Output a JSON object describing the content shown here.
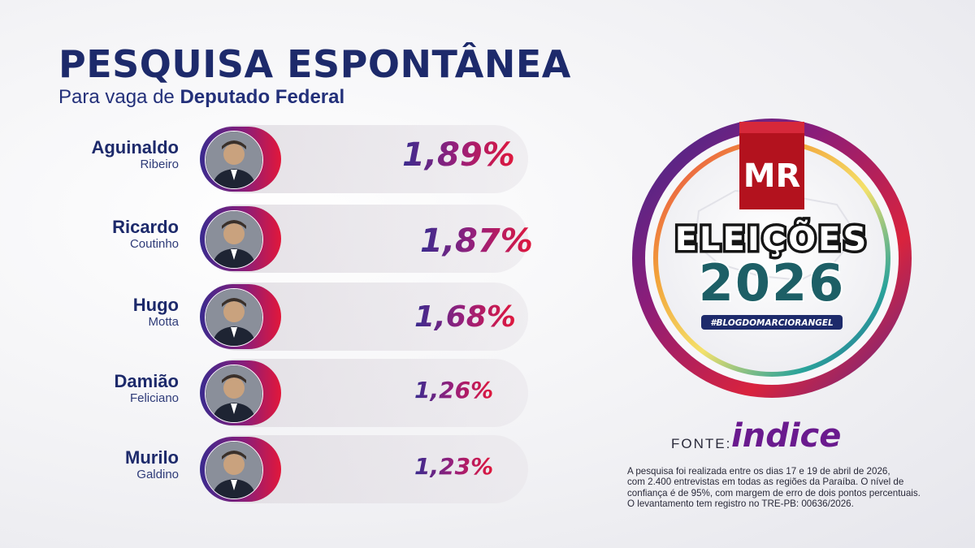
{
  "header": {
    "title": "PESQUISA ESPONTÂNEA",
    "subtitle_prefix": "Para vaga de",
    "subtitle_bold": "Deputado Federal"
  },
  "chart_data": {
    "type": "bar",
    "title": "PESQUISA ESPONTÂNEA",
    "subtitle": "Para vaga de Deputado Federal",
    "unit": "%",
    "categories": [
      "Aguinaldo Ribeiro",
      "Ricardo Coutinho",
      "Hugo Motta",
      "Damião Feliciano",
      "Murilo Galdino"
    ],
    "values": [
      1.89,
      1.87,
      1.68,
      1.26,
      1.23
    ]
  },
  "candidates": [
    {
      "first": "Aguinaldo",
      "last": "Ribeiro",
      "label": "1,89%",
      "value": 1.89
    },
    {
      "first": "Ricardo",
      "last": "Coutinho",
      "label": "1,87%",
      "value": 1.87
    },
    {
      "first": "Hugo",
      "last": "Motta",
      "label": "1,68%",
      "value": 1.68
    },
    {
      "first": "Damião",
      "last": "Feliciano",
      "label": "1,26%",
      "value": 1.26
    },
    {
      "first": "Murilo",
      "last": "Galdino",
      "label": "1,23%",
      "value": 1.23
    }
  ],
  "logo": {
    "initials": "MR",
    "line1": "ELEIÇÕES",
    "line2": "2026",
    "hashtag": "#BLOGDOMARCIORANGEL"
  },
  "source": {
    "label": "FONTE:",
    "brand": "indice"
  },
  "footnote": [
    "A pesquisa foi realizada entre os dias 17 e 19 de abril de 2026,",
    "com 2.400 entrevistas em todas as regiões da Paraíba. O nível de",
    "confiança é de 95%, com margem de erro de dois pontos percentuais.",
    "O levantamento tem registro no TRE-PB: 00636/2026."
  ],
  "colors": {
    "navy": "#1d2a6b",
    "gradient_start": "#3a2b8e",
    "gradient_end": "#e2173a",
    "logo_red": "#b3121e",
    "logo_teal": "#1d5f66"
  }
}
